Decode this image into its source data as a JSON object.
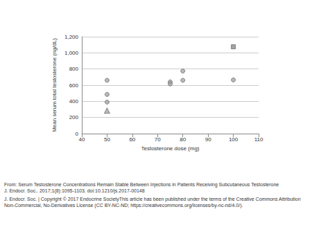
{
  "chart_data": {
    "type": "scatter",
    "x_label": "Testosterone dose (mg)",
    "y_label": "Mean serum total testosterone (ng/dL)",
    "series": [
      {
        "marker": "circle",
        "color": "#a6a6a6",
        "x": [
          50,
          50,
          50,
          75,
          75,
          80,
          80,
          100
        ],
        "values": [
          660,
          485,
          390,
          640,
          615,
          775,
          660,
          665
        ]
      },
      {
        "marker": "triangle",
        "color": "#a6a6a6",
        "x": [
          50
        ],
        "values": [
          285
        ]
      },
      {
        "marker": "square",
        "color": "#8c8c8c",
        "x": [
          100
        ],
        "values": [
          1075
        ]
      }
    ],
    "xlim": [
      40,
      110
    ],
    "xticks": [
      40,
      50,
      60,
      70,
      80,
      90,
      100,
      110
    ],
    "ylim": [
      0,
      1200
    ],
    "yticks": [
      0,
      200,
      400,
      600,
      800,
      1000,
      1200
    ],
    "grid": true
  },
  "caption": {
    "source": "From: Serum Testosterone Concentrations Remain Stable Between Injections in Patients Receiving Subcutaneous Testosterone",
    "citation": "J. Endocr. Soc.. 2017;1(8):1095-1103. doi:10.1210/js.2017-00148",
    "copyright": "J. Endocr. Soc. | Copyright © 2017 Endocrine SocietyThis article has been published under the terms of the Creative Commons Attribution Non-Commercial, No-Derivatives License (CC BY-NC-ND; https://creativecommons.org/licenses/by-nc-nd/4.0/)."
  }
}
